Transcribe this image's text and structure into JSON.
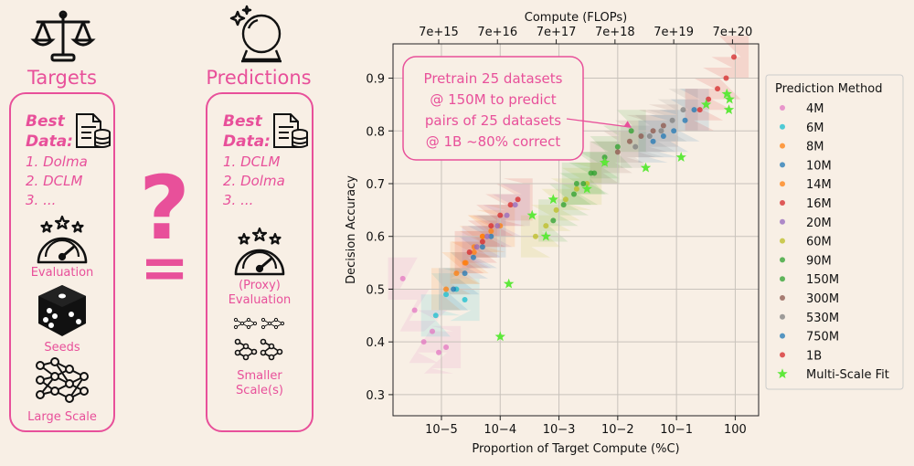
{
  "left_panel": {
    "title": "Targets",
    "best_data_label": "Best Data:",
    "list": [
      "1. Dolma",
      "2. DCLM",
      "3. ..."
    ],
    "eval_caption": "Evaluation",
    "seeds_caption": "Seeds",
    "scale_caption": "Large Scale"
  },
  "middle": {
    "question": "?",
    "approx": "="
  },
  "right_panel": {
    "title": "Predictions",
    "best_data_label": "Best Data:",
    "list": [
      "1. DCLM",
      "2. Dolma",
      "3. ..."
    ],
    "eval_caption_1": "(Proxy)",
    "eval_caption_2": "Evaluation",
    "scale_caption_1": "Smaller",
    "scale_caption_2": "Scale(s)"
  },
  "colors": {
    "accent": "#e8509a",
    "background": "#f8efe5"
  },
  "chart_data": {
    "type": "scatter",
    "xscale": "log",
    "top_axis": {
      "label": "Compute (FLOPs)",
      "ticks": [
        "7e+15",
        "7e+16",
        "7e+17",
        "7e+18",
        "7e+19",
        "7e+20"
      ]
    },
    "xlabel": "Proportion of Target Compute (%C)",
    "ylabel": "Decision Accuracy",
    "xlim": [
      1.5e-06,
      2.5
    ],
    "ylim": [
      0.26,
      0.965
    ],
    "x_ticks": [
      1e-05,
      0.0001,
      0.001,
      0.01,
      0.1,
      1
    ],
    "x_tick_labels": [
      "10−5",
      "10−4",
      "10−3",
      "10−2",
      "10−1",
      "100"
    ],
    "y_ticks": [
      0.3,
      0.4,
      0.5,
      0.6,
      0.7,
      0.8,
      0.9
    ],
    "y_tick_labels": [
      "0.3",
      "0.4",
      "0.5",
      "0.6",
      "0.7",
      "0.8",
      "0.9"
    ],
    "grid": true,
    "annotation": {
      "lines": [
        "Pretrain 25 datasets",
        "@ 150M to predict",
        "pairs of 25 datasets",
        "@ 1B ~80% correct"
      ],
      "points_to": [
        0.017,
        0.8
      ]
    },
    "legend": {
      "title": "Prediction Method",
      "placement": "right",
      "entries": [
        "4M",
        "6M",
        "8M",
        "10M",
        "14M",
        "16M",
        "20M",
        "60M",
        "90M",
        "150M",
        "300M",
        "530M",
        "750M",
        "1B",
        "Multi-Scale Fit"
      ]
    },
    "series": [
      {
        "name": "4M",
        "color": "#e377c2",
        "x": [
          2.2e-06,
          3.5e-06,
          5e-06,
          7e-06,
          9e-06,
          1.2e-05
        ],
        "y": [
          0.52,
          0.46,
          0.4,
          0.42,
          0.38,
          0.39
        ]
      },
      {
        "name": "6M",
        "color": "#17becf",
        "x": [
          8e-06,
          1.2e-05,
          1.8e-05,
          2.5e-05
        ],
        "y": [
          0.45,
          0.49,
          0.5,
          0.48
        ]
      },
      {
        "name": "8M",
        "color": "#ff7f0e",
        "x": [
          1.2e-05,
          1.8e-05,
          2.6e-05,
          3.6e-05,
          5e-05
        ],
        "y": [
          0.5,
          0.53,
          0.55,
          0.58,
          0.6
        ]
      },
      {
        "name": "10M",
        "color": "#1f77b4",
        "x": [
          1.6e-05,
          2.5e-05,
          3.5e-05,
          5e-05,
          7e-05
        ],
        "y": [
          0.5,
          0.53,
          0.56,
          0.58,
          0.6
        ]
      },
      {
        "name": "14M",
        "color": "#ff7f0e",
        "x": [
          2.5e-05,
          3.6e-05,
          5e-05,
          7e-05,
          0.0001
        ],
        "y": [
          0.55,
          0.57,
          0.6,
          0.61,
          0.62
        ]
      },
      {
        "name": "16M",
        "color": "#d62728",
        "x": [
          3e-05,
          5e-05,
          7e-05,
          0.0001,
          0.00015,
          0.0002
        ],
        "y": [
          0.57,
          0.59,
          0.62,
          0.64,
          0.66,
          0.67
        ]
      },
      {
        "name": "20M",
        "color": "#9467bd",
        "x": [
          4e-05,
          6e-05,
          9e-05,
          0.00013,
          0.00018
        ],
        "y": [
          0.58,
          0.6,
          0.62,
          0.64,
          0.66
        ]
      },
      {
        "name": "60M",
        "color": "#bcbd22",
        "x": [
          0.0004,
          0.0006,
          0.0009,
          0.0013,
          0.002,
          0.003
        ],
        "y": [
          0.6,
          0.62,
          0.65,
          0.67,
          0.69,
          0.7
        ]
      },
      {
        "name": "90M",
        "color": "#2ca02c",
        "x": [
          0.0008,
          0.0012,
          0.0018,
          0.0026,
          0.004,
          0.006
        ],
        "y": [
          0.63,
          0.66,
          0.68,
          0.7,
          0.72,
          0.74
        ]
      },
      {
        "name": "150M",
        "color": "#2ca02c",
        "x": [
          0.002,
          0.0035,
          0.006,
          0.01,
          0.017
        ],
        "y": [
          0.7,
          0.72,
          0.75,
          0.77,
          0.8
        ]
      },
      {
        "name": "300M",
        "color": "#8c564b",
        "x": [
          0.006,
          0.01,
          0.016,
          0.025,
          0.04,
          0.06
        ],
        "y": [
          0.74,
          0.76,
          0.78,
          0.79,
          0.8,
          0.81
        ]
      },
      {
        "name": "530M",
        "color": "#7f7f7f",
        "x": [
          0.02,
          0.035,
          0.055,
          0.085,
          0.13
        ],
        "y": [
          0.77,
          0.79,
          0.8,
          0.82,
          0.84
        ]
      },
      {
        "name": "750M",
        "color": "#1f77b4",
        "x": [
          0.04,
          0.06,
          0.09,
          0.14,
          0.2
        ],
        "y": [
          0.78,
          0.79,
          0.8,
          0.82,
          0.84
        ]
      },
      {
        "name": "1B",
        "color": "#d62728",
        "x": [
          0.25,
          0.35,
          0.5,
          0.7,
          0.95
        ],
        "y": [
          0.84,
          0.86,
          0.88,
          0.9,
          0.94
        ]
      },
      {
        "name": "Multi-Scale Fit",
        "color": "#5ee83a",
        "marker": "star",
        "x": [
          0.0001,
          0.00014,
          0.00035,
          0.0006,
          0.0008,
          0.003,
          0.006,
          0.03,
          0.12,
          0.32,
          0.72,
          0.78,
          0.8
        ],
        "y": [
          0.41,
          0.51,
          0.64,
          0.6,
          0.67,
          0.69,
          0.74,
          0.73,
          0.75,
          0.85,
          0.87,
          0.84,
          0.86
        ]
      }
    ]
  }
}
